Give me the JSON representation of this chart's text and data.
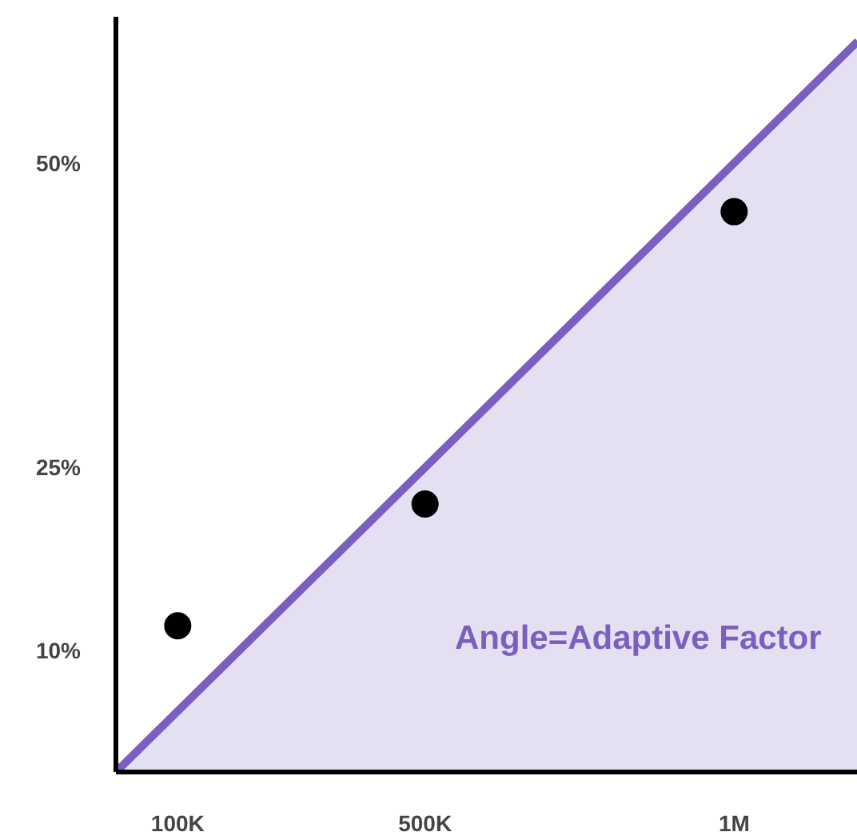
{
  "chart_data": {
    "type": "scatter",
    "xlim": [
      0,
      1200000
    ],
    "ylim": [
      0,
      62
    ],
    "xticks": [
      {
        "value": 100000,
        "label": "100K"
      },
      {
        "value": 500000,
        "label": "500K"
      },
      {
        "value": 1000000,
        "label": "1M"
      }
    ],
    "yticks": [
      {
        "value": 10,
        "label": "10%"
      },
      {
        "value": 25,
        "label": "25%"
      },
      {
        "value": 50,
        "label": "50%"
      }
    ],
    "series": [
      {
        "type": "area",
        "color": "#7b5fc0",
        "x": [
          0,
          1200000
        ],
        "values": [
          0,
          60
        ]
      },
      {
        "color": "#000000",
        "marker": "circle",
        "x": [
          100000,
          500000,
          1000000
        ],
        "values": [
          12,
          22,
          46
        ]
      }
    ],
    "annotations": [
      "Angle=Adaptive Factor"
    ]
  }
}
